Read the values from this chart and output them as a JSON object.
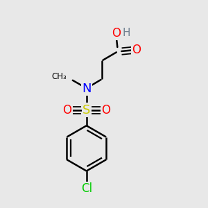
{
  "background_color": "#e8e8e8",
  "atom_colors": {
    "C": "#000000",
    "H": "#708090",
    "O": "#ff0000",
    "N": "#0000ff",
    "S": "#cccc00",
    "Cl": "#00cc00"
  },
  "bond_color": "#000000",
  "bond_width": 1.8,
  "font_size_atom": 12,
  "font_size_H": 11
}
